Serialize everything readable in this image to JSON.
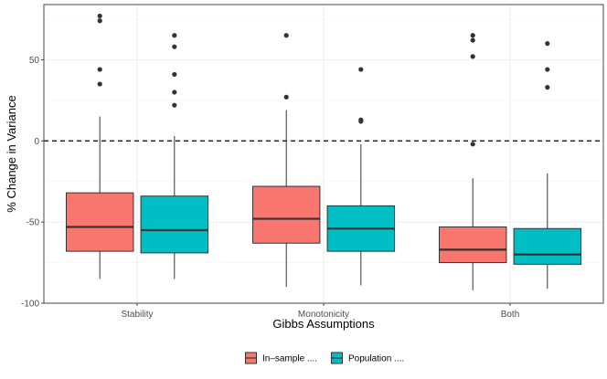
{
  "chart_data": {
    "type": "box",
    "title": "",
    "xlabel": "Gibbs Assumptions",
    "ylabel": "% Change in Variance",
    "ylim": [
      -100,
      84
    ],
    "yticks": [
      -100,
      -50,
      0,
      50
    ],
    "ytick_labels": [
      "-100",
      "-50",
      "0",
      "50"
    ],
    "categories": [
      "Stability",
      "Monotonicity",
      "Both"
    ],
    "reference_line": 0,
    "legend_position": "bottom",
    "series": [
      {
        "name": "In–sample ....",
        "color": "#F8766D",
        "boxes": [
          {
            "whisker_low": -85,
            "q1": -68,
            "median": -53,
            "q3": -32,
            "whisker_high": 15,
            "outliers": [
              35,
              44,
              74,
              77
            ]
          },
          {
            "whisker_low": -90,
            "q1": -63,
            "median": -48,
            "q3": -28,
            "whisker_high": 19,
            "outliers": [
              27,
              65
            ]
          },
          {
            "whisker_low": -92,
            "q1": -75,
            "median": -67,
            "q3": -53,
            "whisker_high": -23,
            "outliers": [
              -2,
              52,
              62,
              65
            ]
          }
        ]
      },
      {
        "name": "Population ....",
        "color": "#00BFC4",
        "boxes": [
          {
            "whisker_low": -85,
            "q1": -69,
            "median": -55,
            "q3": -34,
            "whisker_high": 3,
            "outliers": [
              22,
              30,
              41,
              58,
              65
            ]
          },
          {
            "whisker_low": -89,
            "q1": -68,
            "median": -54,
            "q3": -40,
            "whisker_high": -2,
            "outliers": [
              12,
              13,
              44
            ]
          },
          {
            "whisker_low": -91,
            "q1": -76,
            "median": -70,
            "q3": -54,
            "whisker_high": -20,
            "outliers": [
              33,
              44,
              60
            ]
          }
        ]
      }
    ]
  }
}
